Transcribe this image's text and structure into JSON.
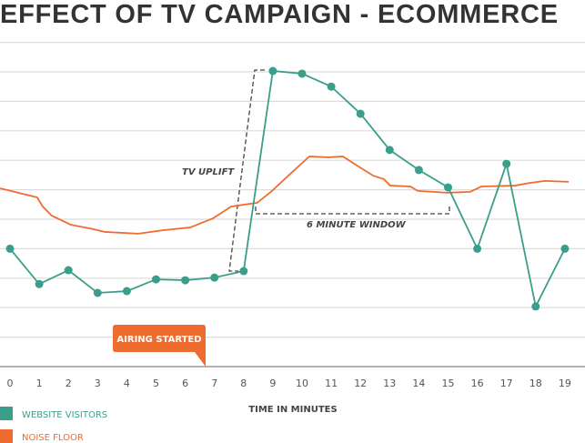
{
  "chart_data": {
    "type": "line",
    "title": "EFFECT OF TV CAMPAIGN - ECOMMERCE",
    "xlabel": "TIME IN MINUTES",
    "ylabel": "",
    "x": [
      0,
      1,
      2,
      3,
      4,
      5,
      6,
      7,
      8,
      9,
      10,
      11,
      12,
      13,
      14,
      15,
      16,
      17,
      18,
      19
    ],
    "xlim": [
      -0.34,
      19.7
    ],
    "ylim": [
      0,
      11
    ],
    "grid": true,
    "series": [
      {
        "name": "WEBSITE VISITORS",
        "color": "#3a9e8b",
        "markers": true,
        "values": [
          4.0,
          2.8,
          3.27,
          2.5,
          2.56,
          2.96,
          2.93,
          3.02,
          3.24,
          10.03,
          9.94,
          9.5,
          8.58,
          7.35,
          6.67,
          6.08,
          4.0,
          6.88,
          2.04,
          4.0
        ]
      },
      {
        "name": "NOISE FLOOR",
        "color": "#ee6c2f",
        "markers": false,
        "points": [
          [
            -0.34,
            6.05
          ],
          [
            0.93,
            5.74
          ],
          [
            1.12,
            5.43
          ],
          [
            1.43,
            5.12
          ],
          [
            2.09,
            4.81
          ],
          [
            2.87,
            4.66
          ],
          [
            3.24,
            4.57
          ],
          [
            4.39,
            4.51
          ],
          [
            5.26,
            4.63
          ],
          [
            6.17,
            4.72
          ],
          [
            6.95,
            5.03
          ],
          [
            7.57,
            5.43
          ],
          [
            8.47,
            5.56
          ],
          [
            8.97,
            5.96
          ],
          [
            9.63,
            6.57
          ],
          [
            10.25,
            7.13
          ],
          [
            10.9,
            7.1
          ],
          [
            11.4,
            7.13
          ],
          [
            11.93,
            6.79
          ],
          [
            12.43,
            6.48
          ],
          [
            12.8,
            6.36
          ],
          [
            13.02,
            6.14
          ],
          [
            13.71,
            6.11
          ],
          [
            13.96,
            5.96
          ],
          [
            14.98,
            5.9
          ],
          [
            15.76,
            5.93
          ],
          [
            16.14,
            6.11
          ],
          [
            17.29,
            6.14
          ],
          [
            17.79,
            6.23
          ],
          [
            18.32,
            6.3
          ],
          [
            19.13,
            6.27
          ]
        ]
      }
    ],
    "annotations": {
      "uplift": "TV UPLIFT",
      "window": "6 MINUTE WINDOW",
      "airing": "AIRING STARTED"
    },
    "legend_placement": "bottom-left"
  }
}
